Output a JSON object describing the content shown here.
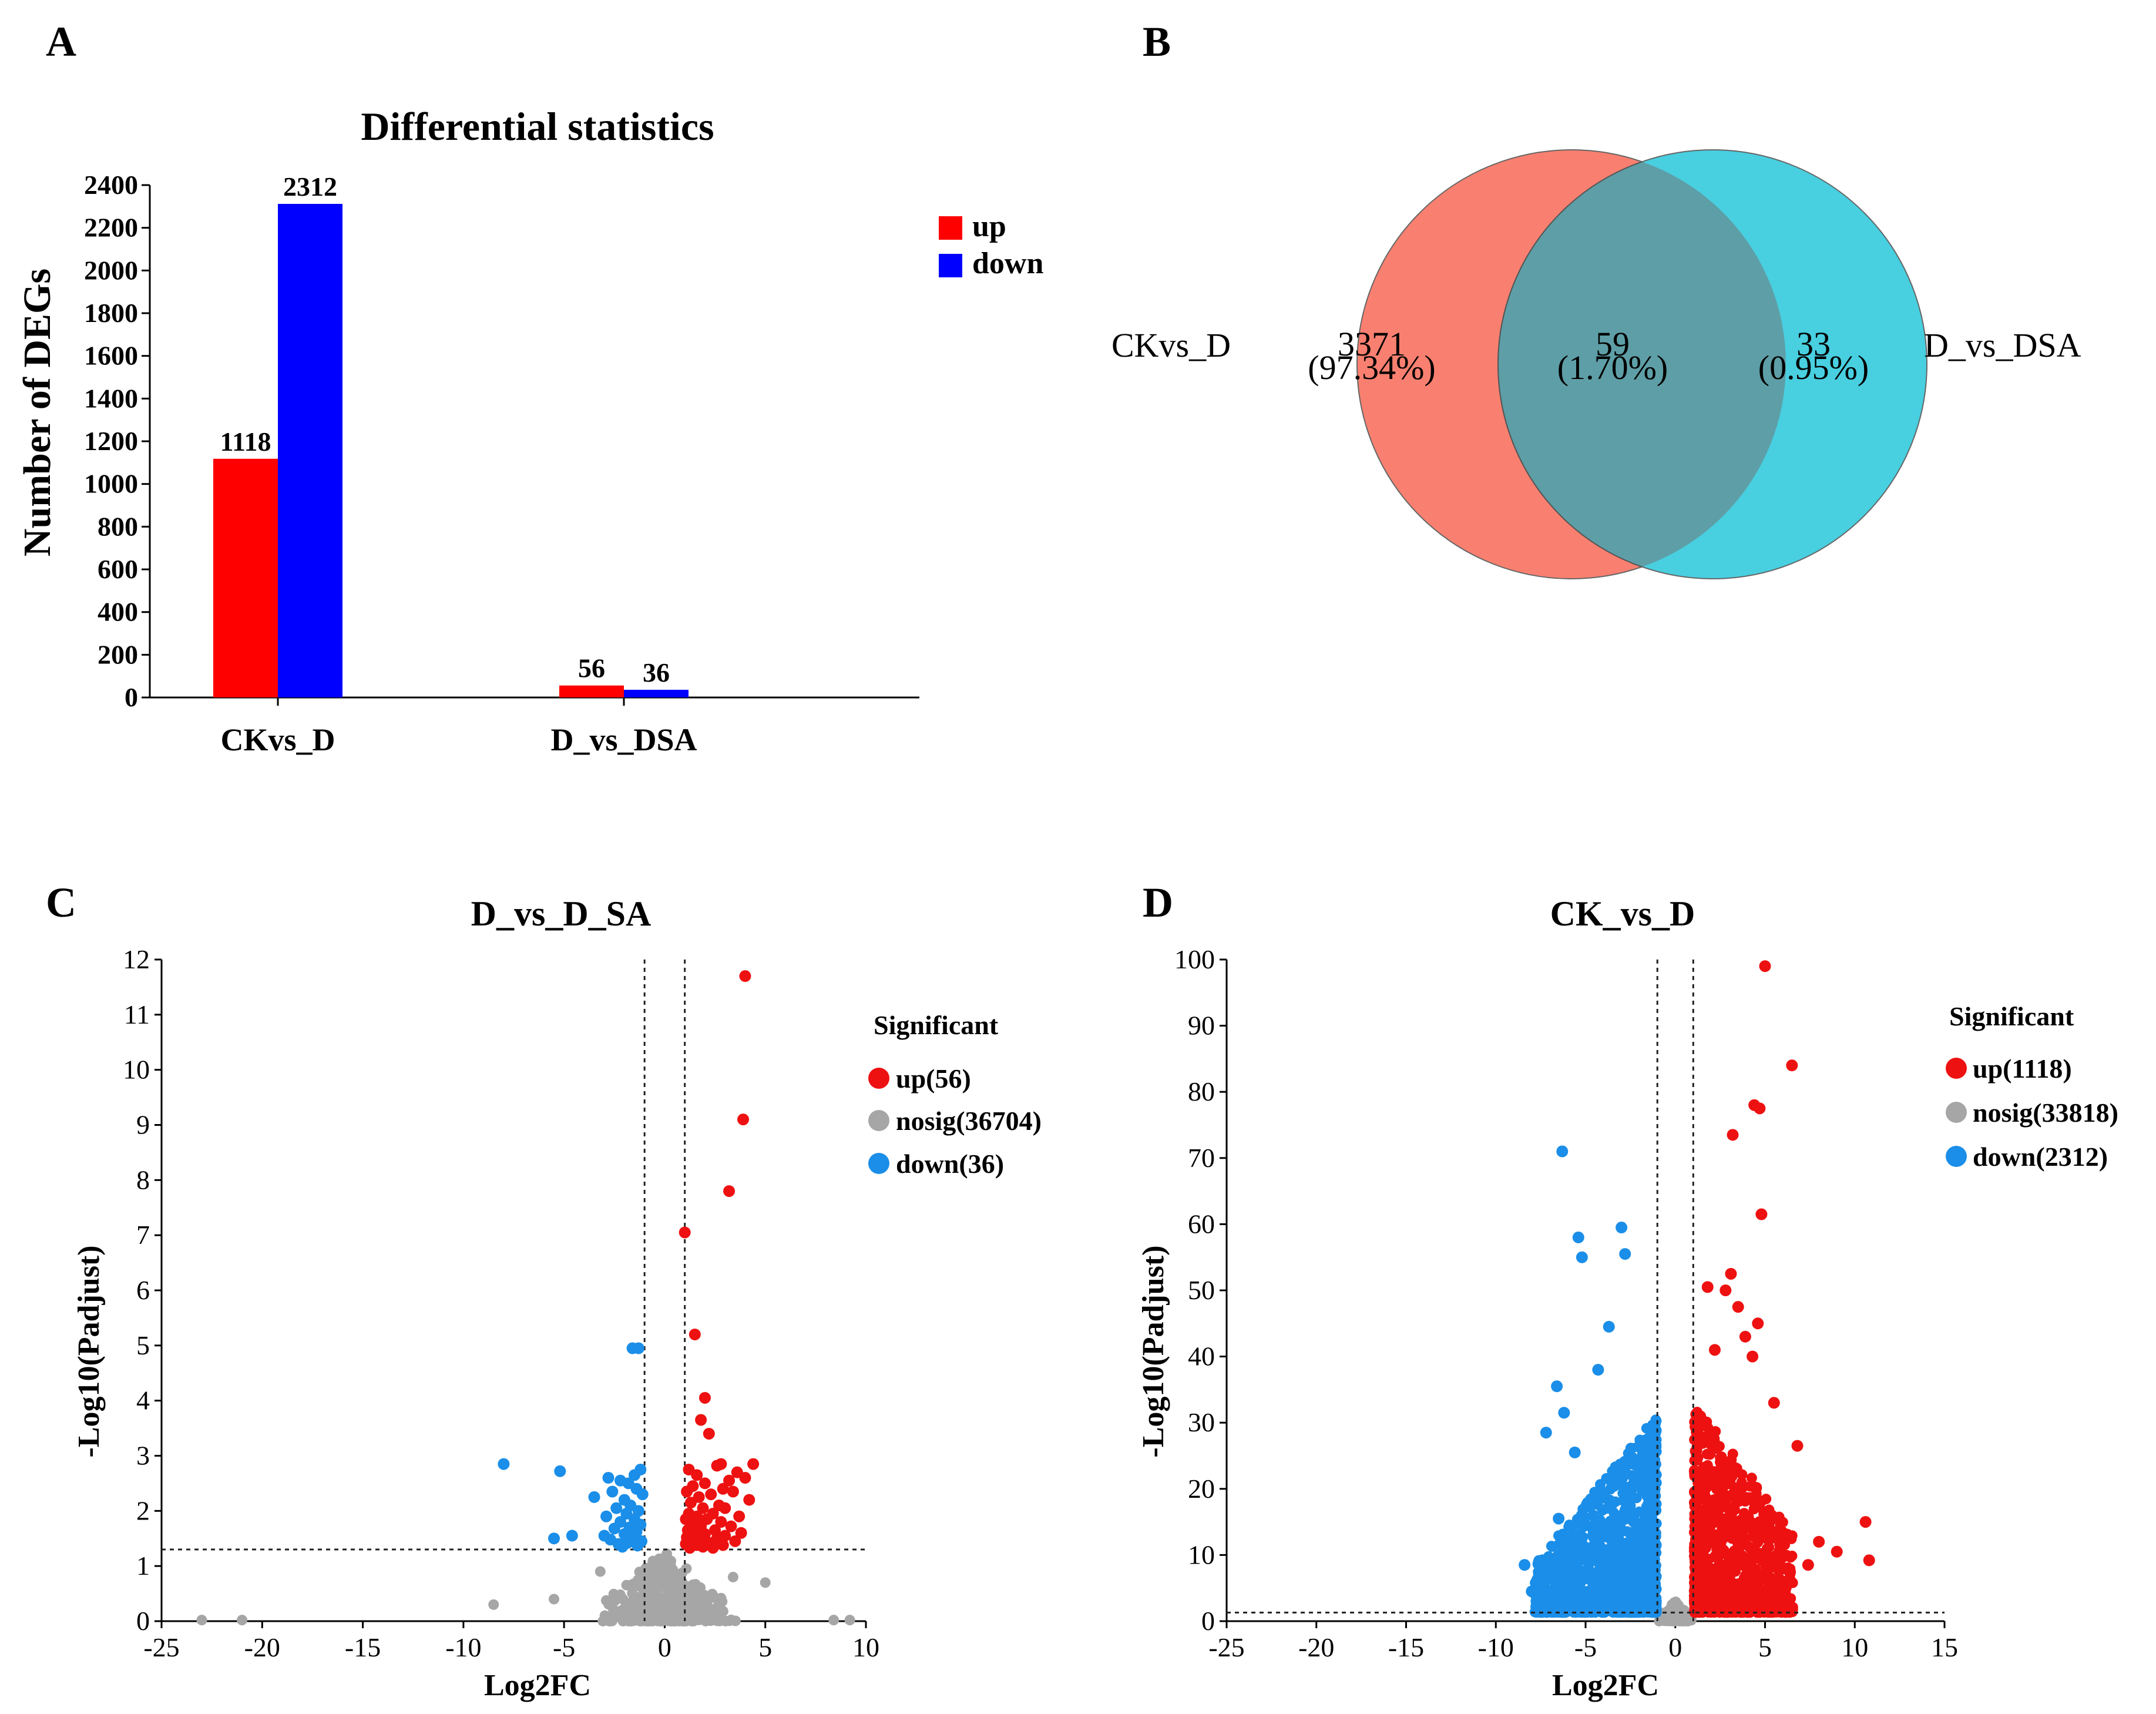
{
  "panels": {
    "a": "A",
    "b": "B",
    "c": "C",
    "d": "D"
  },
  "colors": {
    "up": "#ff0000",
    "down": "#0000ff",
    "venn_left": "#f98070",
    "venn_right": "#48cfe0",
    "venn_overlap": "#5e9ea6",
    "volcano_up": "#ee1111",
    "volcano_down": "#1a8ee8",
    "volcano_nosig": "#a6a6a6"
  },
  "chart_data": [
    {
      "type": "bar",
      "title": "Differential statistics",
      "ylabel": "Number of DEGs",
      "xlabel": "",
      "categories": [
        "CKvs_D",
        "D_vs_DSA"
      ],
      "series": [
        {
          "name": "up",
          "values": [
            1118,
            56
          ]
        },
        {
          "name": "down",
          "values": [
            2312,
            36
          ]
        }
      ],
      "value_labels": [
        "1118",
        "56",
        "2312",
        "36"
      ],
      "ylim": [
        0,
        2400
      ],
      "yticks": [
        "0",
        "200",
        "400",
        "600",
        "800",
        "1000",
        "1200",
        "1400",
        "1600",
        "1800",
        "2000",
        "2200",
        "2400"
      ],
      "legend": {
        "position": "top-right",
        "entries": [
          "up",
          "down"
        ]
      }
    },
    {
      "type": "venn",
      "sets": [
        {
          "name": "CKvs_D",
          "only_count": "3371",
          "only_percent": "(97.34%)"
        },
        {
          "name": "D_vs_DSA",
          "only_count": "33",
          "only_percent": "(0.95%)"
        }
      ],
      "overlap": {
        "count": "59",
        "percent": "(1.70%)"
      }
    },
    {
      "type": "scatter",
      "title": "D_vs_D_SA",
      "xlabel": "Log2FC",
      "ylabel": "-Log10(Padjust)",
      "xlim": [
        -25,
        10
      ],
      "ylim": [
        0,
        12
      ],
      "xticks": [
        "-25",
        "-20",
        "-15",
        "-10",
        "-5",
        "0",
        "5",
        "10"
      ],
      "yticks": [
        "0",
        "1",
        "2",
        "3",
        "4",
        "5",
        "6",
        "7",
        "8",
        "9",
        "10",
        "11",
        "12"
      ],
      "vlines": [
        -1,
        1
      ],
      "hline": 1.3,
      "legend": {
        "title": "Significant",
        "entries": [
          "up(56)",
          "nosig(36704)",
          "down(36)"
        ]
      },
      "series": [
        {
          "name": "up",
          "points": [
            [
              4.0,
              11.7
            ],
            [
              3.9,
              9.1
            ],
            [
              3.2,
              7.8
            ],
            [
              1.0,
              7.05
            ],
            [
              1.5,
              5.2
            ],
            [
              2.0,
              4.05
            ],
            [
              1.8,
              3.65
            ],
            [
              2.2,
              3.4
            ],
            [
              4.4,
              2.85
            ],
            [
              2.8,
              2.85
            ],
            [
              2.6,
              2.82
            ],
            [
              1.2,
              2.75
            ],
            [
              3.6,
              2.7
            ],
            [
              1.6,
              2.65
            ],
            [
              4.0,
              2.6
            ],
            [
              3.2,
              2.55
            ],
            [
              2.0,
              2.5
            ],
            [
              1.4,
              2.45
            ],
            [
              2.9,
              2.4
            ],
            [
              1.1,
              2.35
            ],
            [
              3.4,
              2.35
            ],
            [
              2.3,
              2.3
            ],
            [
              1.7,
              2.25
            ],
            [
              4.2,
              2.2
            ],
            [
              1.3,
              2.15
            ],
            [
              2.7,
              2.1
            ],
            [
              1.9,
              2.05
            ],
            [
              3.0,
              2.05
            ],
            [
              1.2,
              1.95
            ],
            [
              2.4,
              1.95
            ],
            [
              1.6,
              1.9
            ],
            [
              3.7,
              1.9
            ],
            [
              1.05,
              1.85
            ],
            [
              2.1,
              1.85
            ],
            [
              2.8,
              1.8
            ],
            [
              1.4,
              1.75
            ],
            [
              1.8,
              1.72
            ],
            [
              3.3,
              1.72
            ],
            [
              1.15,
              1.65
            ],
            [
              2.5,
              1.65
            ],
            [
              1.5,
              1.6
            ],
            [
              2.0,
              1.58
            ],
            [
              3.8,
              1.6
            ],
            [
              1.1,
              1.52
            ],
            [
              1.7,
              1.5
            ],
            [
              2.6,
              1.5
            ],
            [
              1.3,
              1.45
            ],
            [
              2.2,
              1.42
            ],
            [
              3.5,
              1.45
            ],
            [
              1.05,
              1.4
            ],
            [
              1.6,
              1.38
            ],
            [
              2.9,
              1.38
            ],
            [
              1.9,
              1.35
            ],
            [
              1.25,
              1.33
            ],
            [
              2.4,
              1.33
            ],
            [
              3.0,
              1.55
            ]
          ]
        },
        {
          "name": "down",
          "points": [
            [
              -1.6,
              4.95
            ],
            [
              -1.3,
              4.95
            ],
            [
              -8.0,
              2.85
            ],
            [
              -5.2,
              2.72
            ],
            [
              -1.2,
              2.75
            ],
            [
              -1.5,
              2.65
            ],
            [
              -2.8,
              2.6
            ],
            [
              -2.2,
              2.55
            ],
            [
              -1.8,
              2.5
            ],
            [
              -1.4,
              2.4
            ],
            [
              -2.6,
              2.35
            ],
            [
              -1.1,
              2.3
            ],
            [
              -3.5,
              2.25
            ],
            [
              -2.0,
              2.2
            ],
            [
              -1.7,
              2.1
            ],
            [
              -2.4,
              2.05
            ],
            [
              -1.3,
              2.0
            ],
            [
              -1.9,
              1.95
            ],
            [
              -2.9,
              1.9
            ],
            [
              -1.5,
              1.85
            ],
            [
              -2.2,
              1.8
            ],
            [
              -1.2,
              1.75
            ],
            [
              -1.75,
              1.7
            ],
            [
              -2.5,
              1.68
            ],
            [
              -1.4,
              1.62
            ],
            [
              -2.0,
              1.58
            ],
            [
              -3.0,
              1.55
            ],
            [
              -1.6,
              1.5
            ],
            [
              -2.7,
              1.48
            ],
            [
              -5.5,
              1.5
            ],
            [
              -4.6,
              1.55
            ],
            [
              -1.15,
              1.45
            ],
            [
              -1.85,
              1.42
            ],
            [
              -2.3,
              1.4
            ],
            [
              -1.35,
              1.37
            ],
            [
              -2.1,
              1.35
            ]
          ]
        },
        {
          "name": "nosig",
          "note": "36704 points rendered as a dense grey cloud below the threshold"
        }
      ]
    },
    {
      "type": "scatter",
      "title": "CK_vs_D",
      "xlabel": "Log2FC",
      "ylabel": "-Log10(Padjust)",
      "xlim": [
        -25,
        15
      ],
      "ylim": [
        0,
        100
      ],
      "xticks": [
        "-25",
        "-20",
        "-15",
        "-10",
        "-5",
        "0",
        "5",
        "10",
        "15"
      ],
      "yticks": [
        "0",
        "10",
        "20",
        "30",
        "40",
        "50",
        "60",
        "70",
        "80",
        "90",
        "100"
      ],
      "vlines": [
        -1,
        1
      ],
      "hline": 1.3,
      "legend": {
        "title": "Significant",
        "entries": [
          "up(1118)",
          "nosig(33818)",
          "down(2312)"
        ]
      },
      "series": [
        {
          "name": "up",
          "points": [
            [
              5.0,
              99
            ],
            [
              6.5,
              84
            ],
            [
              4.4,
              78
            ],
            [
              4.7,
              77.5
            ],
            [
              3.2,
              73.5
            ],
            [
              4.8,
              61.5
            ],
            [
              3.1,
              52.5
            ],
            [
              4.6,
              45
            ],
            [
              1.8,
              50.5
            ],
            [
              2.8,
              50
            ],
            [
              3.5,
              47.5
            ],
            [
              3.9,
              43
            ],
            [
              2.2,
              41
            ],
            [
              4.3,
              40
            ],
            [
              5.5,
              33
            ],
            [
              6.8,
              26.5
            ],
            [
              8.0,
              12
            ],
            [
              9.0,
              10.5
            ],
            [
              10.6,
              15
            ],
            [
              10.8,
              9.2
            ],
            [
              7.4,
              8.5
            ],
            [
              6.2,
              6
            ],
            [
              5.8,
              5
            ]
          ]
        },
        {
          "name": "down",
          "points": [
            [
              -6.3,
              71
            ],
            [
              -3.0,
              59.5
            ],
            [
              -5.4,
              58
            ],
            [
              -2.8,
              55.5
            ],
            [
              -5.2,
              55
            ],
            [
              -3.7,
              44.5
            ],
            [
              -4.3,
              38
            ],
            [
              -6.6,
              35.5
            ],
            [
              -7.2,
              28.5
            ],
            [
              -6.2,
              31.5
            ],
            [
              -8.4,
              8.5
            ],
            [
              -8.0,
              4.5
            ],
            [
              -7.4,
              4
            ],
            [
              -6.5,
              15.5
            ],
            [
              -5.6,
              25.5
            ]
          ]
        },
        {
          "name": "nosig",
          "note": "33818 points rendered as a dense grey cloud near zero"
        }
      ]
    }
  ]
}
